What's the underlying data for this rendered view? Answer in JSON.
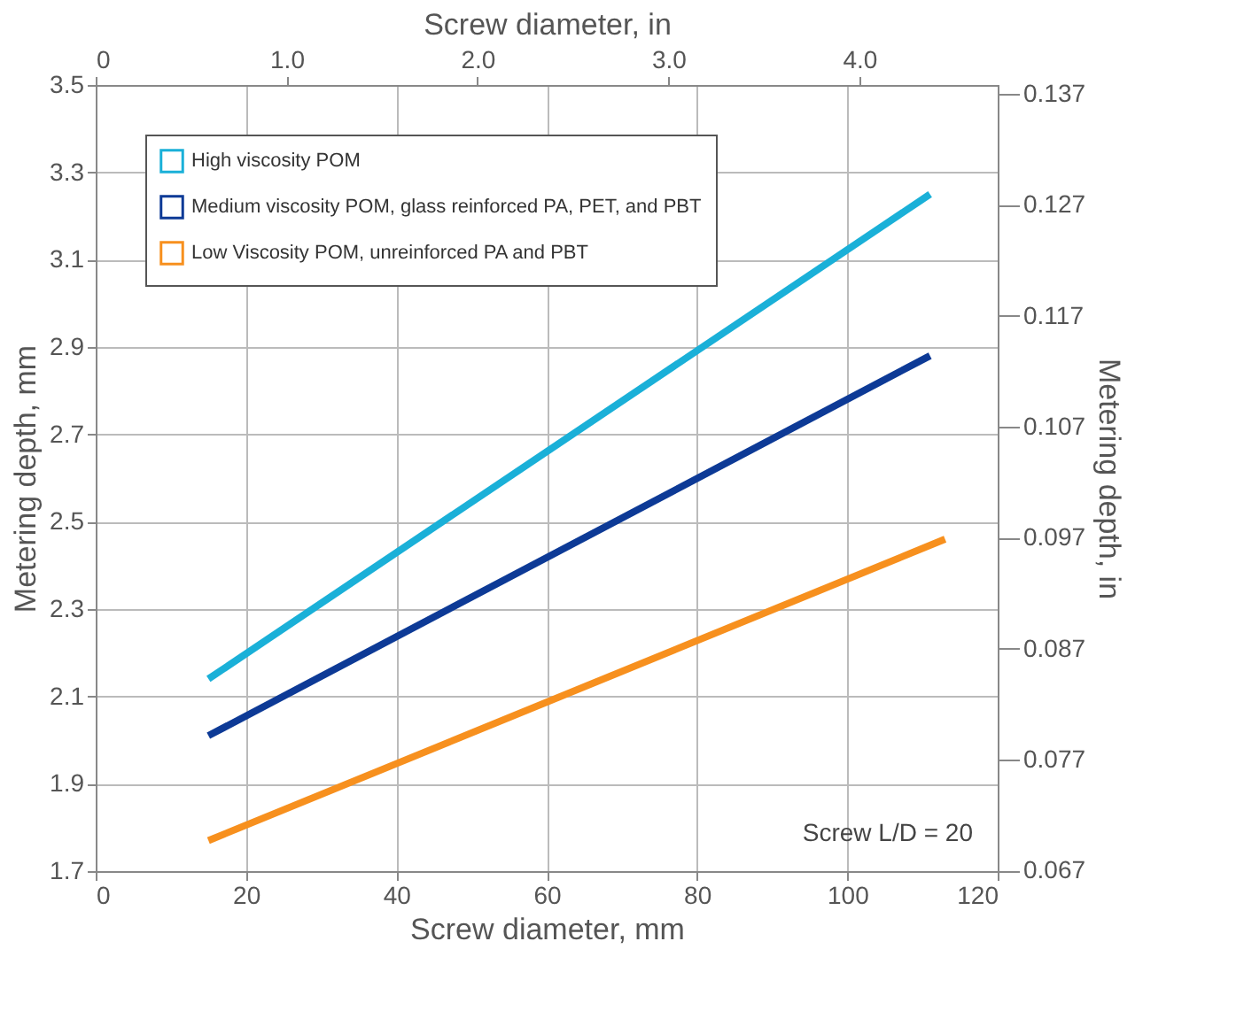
{
  "chart_data": {
    "type": "line",
    "xlabel": "Screw diameter, mm",
    "ylabel": "Metering depth, mm",
    "x2label": "Screw diameter, in",
    "y2label": "Metering depth, in",
    "xlim": [
      0,
      120
    ],
    "xticks": [
      0,
      20,
      40,
      60,
      80,
      100,
      120
    ],
    "x2lim": [
      0,
      4.724
    ],
    "x2ticks": [
      0,
      {
        "value": 1,
        "label": "1.0"
      },
      {
        "value": 2,
        "label": "2.0"
      },
      {
        "value": 3,
        "label": "3.0"
      },
      {
        "value": 4,
        "label": "4.0"
      }
    ],
    "ylim": [
      1.7,
      3.5
    ],
    "yticks": [
      1.7,
      1.9,
      2.1,
      2.3,
      2.5,
      2.7,
      2.9,
      3.1,
      3.3,
      3.5
    ],
    "y2lim": [
      0.06693,
      0.1378
    ],
    "y2ticks": [
      0.067,
      0.077,
      0.087,
      0.097,
      0.107,
      0.117,
      0.127,
      0.137
    ],
    "grid": true,
    "legend": "top left",
    "line_style": "solid",
    "annotations": [
      "Screw L/D = 20"
    ],
    "series": [
      {
        "name": "High viscosity POM",
        "color": "#1ab0d8",
        "x": [
          15,
          111
        ],
        "values": [
          2.14,
          3.25
        ]
      },
      {
        "name": "Medium viscosity POM, glass reinforced PA, PET, and PBT",
        "color": "#0d3a96",
        "x": [
          15,
          111
        ],
        "values": [
          2.01,
          2.88
        ]
      },
      {
        "name": "Low Viscosity POM, unreinforced PA and PBT",
        "color": "#f7901e",
        "x": [
          15,
          113
        ],
        "values": [
          1.77,
          2.46
        ]
      }
    ]
  }
}
